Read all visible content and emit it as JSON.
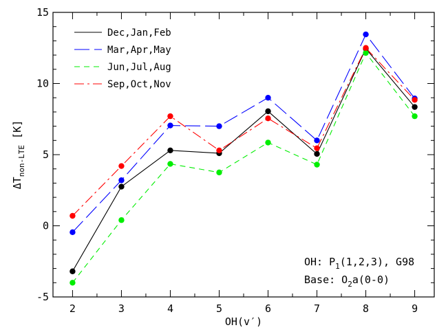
{
  "chart_data": {
    "type": "line",
    "xlabel_main": "OH(v",
    "xlabel_prime": "′",
    "xlabel_close": ")",
    "ylabel_symbol": "ΔT",
    "ylabel_sub": "non-LTE",
    "ylabel_unit": " [K]",
    "x": [
      2,
      3,
      4,
      5,
      6,
      7,
      8,
      9
    ],
    "xlim": [
      1.6,
      9.4
    ],
    "ylim": [
      -5,
      15
    ],
    "xticks": [
      "2",
      "3",
      "4",
      "5",
      "6",
      "7",
      "8",
      "9"
    ],
    "yticks": [
      "-5",
      "0",
      "5",
      "10",
      "15"
    ],
    "legend_position": "top-left",
    "series": [
      {
        "name": "Dec,Jan,Feb",
        "color": "#000000",
        "values": [
          -3.2,
          2.75,
          5.3,
          5.1,
          8.05,
          5.05,
          12.45,
          8.35
        ]
      },
      {
        "name": "Mar,Apr,May",
        "color": "#0000ff",
        "values": [
          -0.45,
          3.2,
          7.05,
          7.0,
          9.0,
          6.0,
          13.45,
          8.95
        ]
      },
      {
        "name": "Jun,Jul,Aug",
        "color": "#00ee00",
        "values": [
          -4.0,
          0.4,
          4.35,
          3.75,
          5.85,
          4.3,
          12.15,
          7.7
        ]
      },
      {
        "name": "Sep,Oct,Nov",
        "color": "#ff0000",
        "values": [
          0.7,
          4.2,
          7.7,
          5.3,
          7.55,
          5.45,
          12.5,
          8.85
        ]
      }
    ],
    "annotations": {
      "line1_prefix": "OH: P",
      "line1_sub": "1",
      "line1_suffix": "(1,2,3), G98",
      "line2_prefix": "Base: O",
      "line2_sub": "2",
      "line2_suffix": "a(0-0)"
    }
  }
}
